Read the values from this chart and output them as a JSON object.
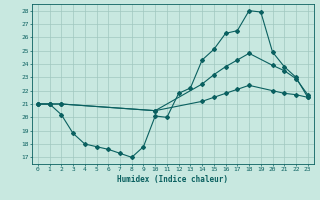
{
  "title": "",
  "xlabel": "Humidex (Indice chaleur)",
  "xlim": [
    -0.5,
    23.5
  ],
  "ylim": [
    16.5,
    28.5
  ],
  "yticks": [
    17,
    18,
    19,
    20,
    21,
    22,
    23,
    24,
    25,
    26,
    27,
    28
  ],
  "xticks": [
    0,
    1,
    2,
    3,
    4,
    5,
    6,
    7,
    8,
    9,
    10,
    11,
    12,
    13,
    14,
    15,
    16,
    17,
    18,
    19,
    20,
    21,
    22,
    23
  ],
  "bg_color": "#c8e8e0",
  "grid_color": "#a0c8c0",
  "line_color": "#0a6060",
  "line1_x": [
    0,
    1,
    2,
    3,
    4,
    5,
    6,
    7,
    8,
    9,
    10,
    11,
    12,
    13,
    14,
    15,
    16,
    17,
    18,
    19,
    20,
    21,
    22,
    23
  ],
  "line1_y": [
    21.0,
    21.0,
    20.2,
    18.8,
    18.0,
    17.8,
    17.6,
    17.3,
    17.0,
    17.8,
    20.1,
    20.0,
    21.8,
    22.2,
    24.3,
    25.1,
    26.3,
    26.5,
    28.0,
    27.9,
    24.9,
    23.8,
    23.0,
    21.5
  ],
  "line2_x": [
    0,
    1,
    2,
    10,
    14,
    15,
    16,
    17,
    18,
    20,
    21,
    22,
    23
  ],
  "line2_y": [
    21.0,
    21.0,
    21.0,
    20.5,
    22.5,
    23.2,
    23.8,
    24.3,
    24.8,
    23.9,
    23.5,
    22.9,
    21.7
  ],
  "line3_x": [
    0,
    1,
    2,
    10,
    14,
    15,
    16,
    17,
    18,
    20,
    21,
    22,
    23
  ],
  "line3_y": [
    21.0,
    21.0,
    21.0,
    20.5,
    21.2,
    21.5,
    21.8,
    22.1,
    22.4,
    22.0,
    21.8,
    21.7,
    21.5
  ]
}
